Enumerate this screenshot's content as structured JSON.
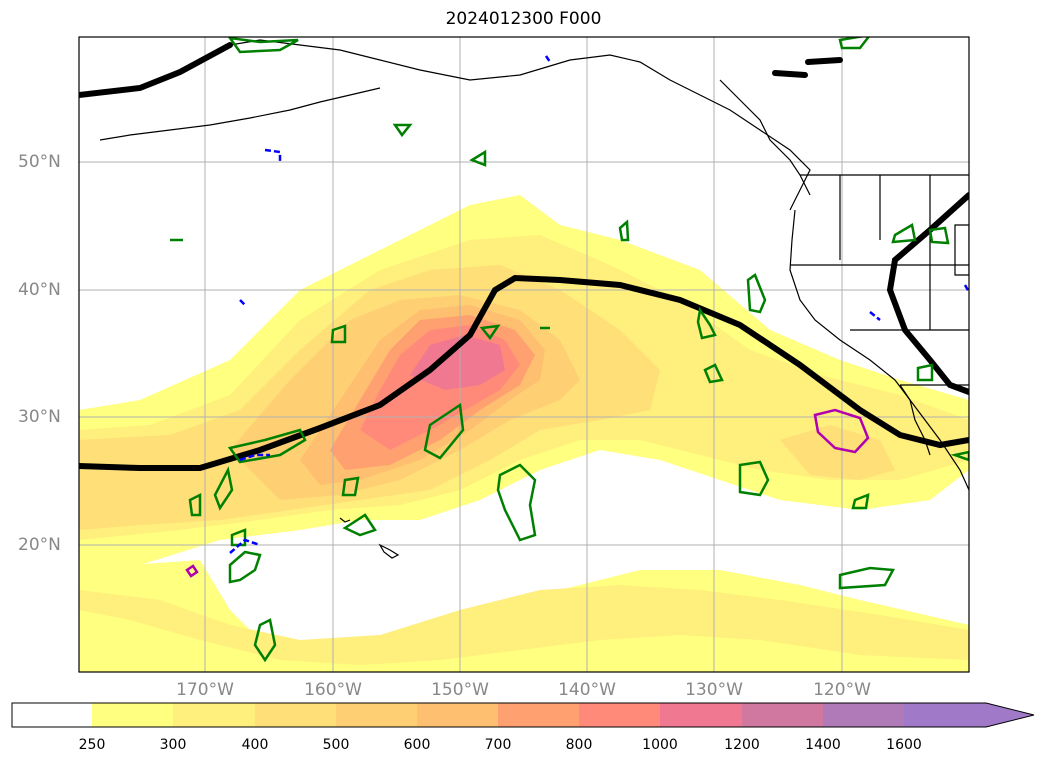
{
  "title": "2024012300 F000",
  "lat_labels": [
    "50°N",
    "40°N",
    "30°N",
    "20°N"
  ],
  "lon_labels": [
    "170°W",
    "160°W",
    "150°W",
    "140°W",
    "130°W",
    "120°W"
  ],
  "colorbar": {
    "ticks": [
      "250",
      "300",
      "400",
      "500",
      "600",
      "700",
      "800",
      "1000",
      "1200",
      "1400",
      "1600"
    ],
    "colors": [
      "#ffffff",
      "#ffff80",
      "#ffef7c",
      "#ffdf78",
      "#ffcf74",
      "#ffbf70",
      "#ffa070",
      "#ff8a7a",
      "#f07890",
      "#d078a0",
      "#b07ab8",
      "#a07ac8"
    ],
    "extend": "max"
  },
  "contour_colors": {
    "jet_line": "#000000",
    "green": "#008000",
    "blue": "#0000ff",
    "magenta": "#b000b0"
  }
}
